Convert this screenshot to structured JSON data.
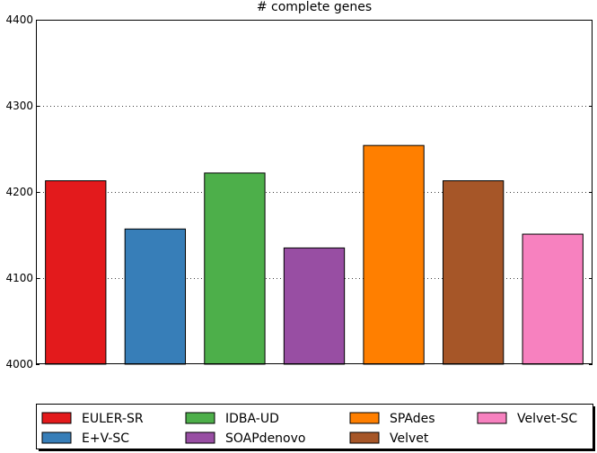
{
  "chart_data": {
    "type": "bar",
    "title": "# complete genes",
    "xlabel": "",
    "ylabel": "",
    "ylim": [
      4000,
      4400
    ],
    "yticks": [
      4000,
      4100,
      4200,
      4300,
      4400
    ],
    "grid": "horizontal-dotted",
    "legend_placement": "bottom",
    "categories": [
      "EULER-SR",
      "E+V-SC",
      "IDBA-UD",
      "SOAPdenovo",
      "SPAdes",
      "Velvet",
      "Velvet-SC"
    ],
    "values": [
      4213,
      4157,
      4222,
      4135,
      4254,
      4213,
      4151
    ],
    "colors": [
      "#e31a1c",
      "#377eb8",
      "#4daf4a",
      "#984ea3",
      "#ff7f00",
      "#a65628",
      "#f781bf"
    ]
  }
}
